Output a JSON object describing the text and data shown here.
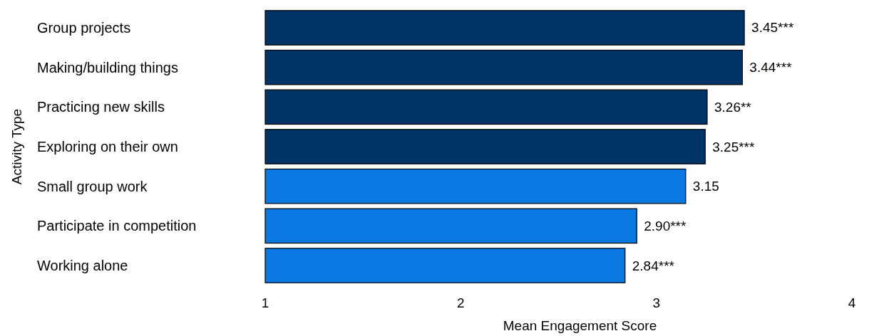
{
  "chart_data": {
    "type": "bar",
    "orientation": "horizontal",
    "xlabel": "Mean Engagement Score",
    "ylabel": "Activity Type",
    "categories": [
      "Group projects",
      "Making/building things",
      "Practicing new skills",
      "Exploring on their own",
      "Small group work",
      "Participate in competition",
      "Working alone"
    ],
    "values": [
      3.45,
      3.44,
      3.26,
      3.25,
      3.15,
      2.9,
      2.84
    ],
    "colors": [
      "#003366",
      "#003366",
      "#003366",
      "#003366",
      "#0a78e0",
      "#0a78e0",
      "#0a78e0"
    ],
    "value_labels": [
      "3.45***",
      "3.44***",
      "3.26**",
      "3.25***",
      "3.15",
      "2.90***",
      "2.84***"
    ],
    "xlim": [
      1,
      4
    ],
    "xticks": [
      1,
      2,
      3,
      4
    ],
    "grid": false
  }
}
